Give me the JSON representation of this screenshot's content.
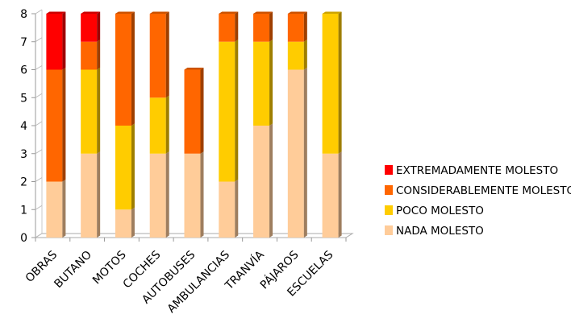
{
  "chart_data": {
    "type": "bar",
    "stacked": true,
    "style": "3d",
    "categories": [
      "OBRAS",
      "BUTANO",
      "MOTOS",
      "COCHES",
      "AUTOBUSES",
      "AMBULANCIAS",
      "TRANVÍA",
      "PÁJAROS",
      "ESCUELAS"
    ],
    "series": [
      {
        "name": "NADA MOLESTO",
        "color": "#FFCC99",
        "values": [
          2,
          3,
          1,
          3,
          3,
          2,
          4,
          6,
          3
        ]
      },
      {
        "name": "POCO MOLESTO",
        "color": "#FFCC00",
        "values": [
          0,
          3,
          3,
          2,
          0,
          5,
          3,
          1,
          5
        ]
      },
      {
        "name": "CONSIDERABLEMENTE MOLESTO",
        "color": "#FF6600",
        "values": [
          4,
          1,
          4,
          3,
          3,
          1,
          1,
          1,
          0
        ]
      },
      {
        "name": "EXTREMADAMENTE MOLESTO",
        "color": "#FF0000",
        "values": [
          2,
          1,
          0,
          0,
          0,
          0,
          0,
          0,
          0
        ]
      }
    ],
    "ylim": [
      0,
      8
    ],
    "yticks": [
      "0",
      "1",
      "2",
      "3",
      "4",
      "5",
      "6",
      "7",
      "8"
    ],
    "legend_position": "right",
    "grid": false
  }
}
